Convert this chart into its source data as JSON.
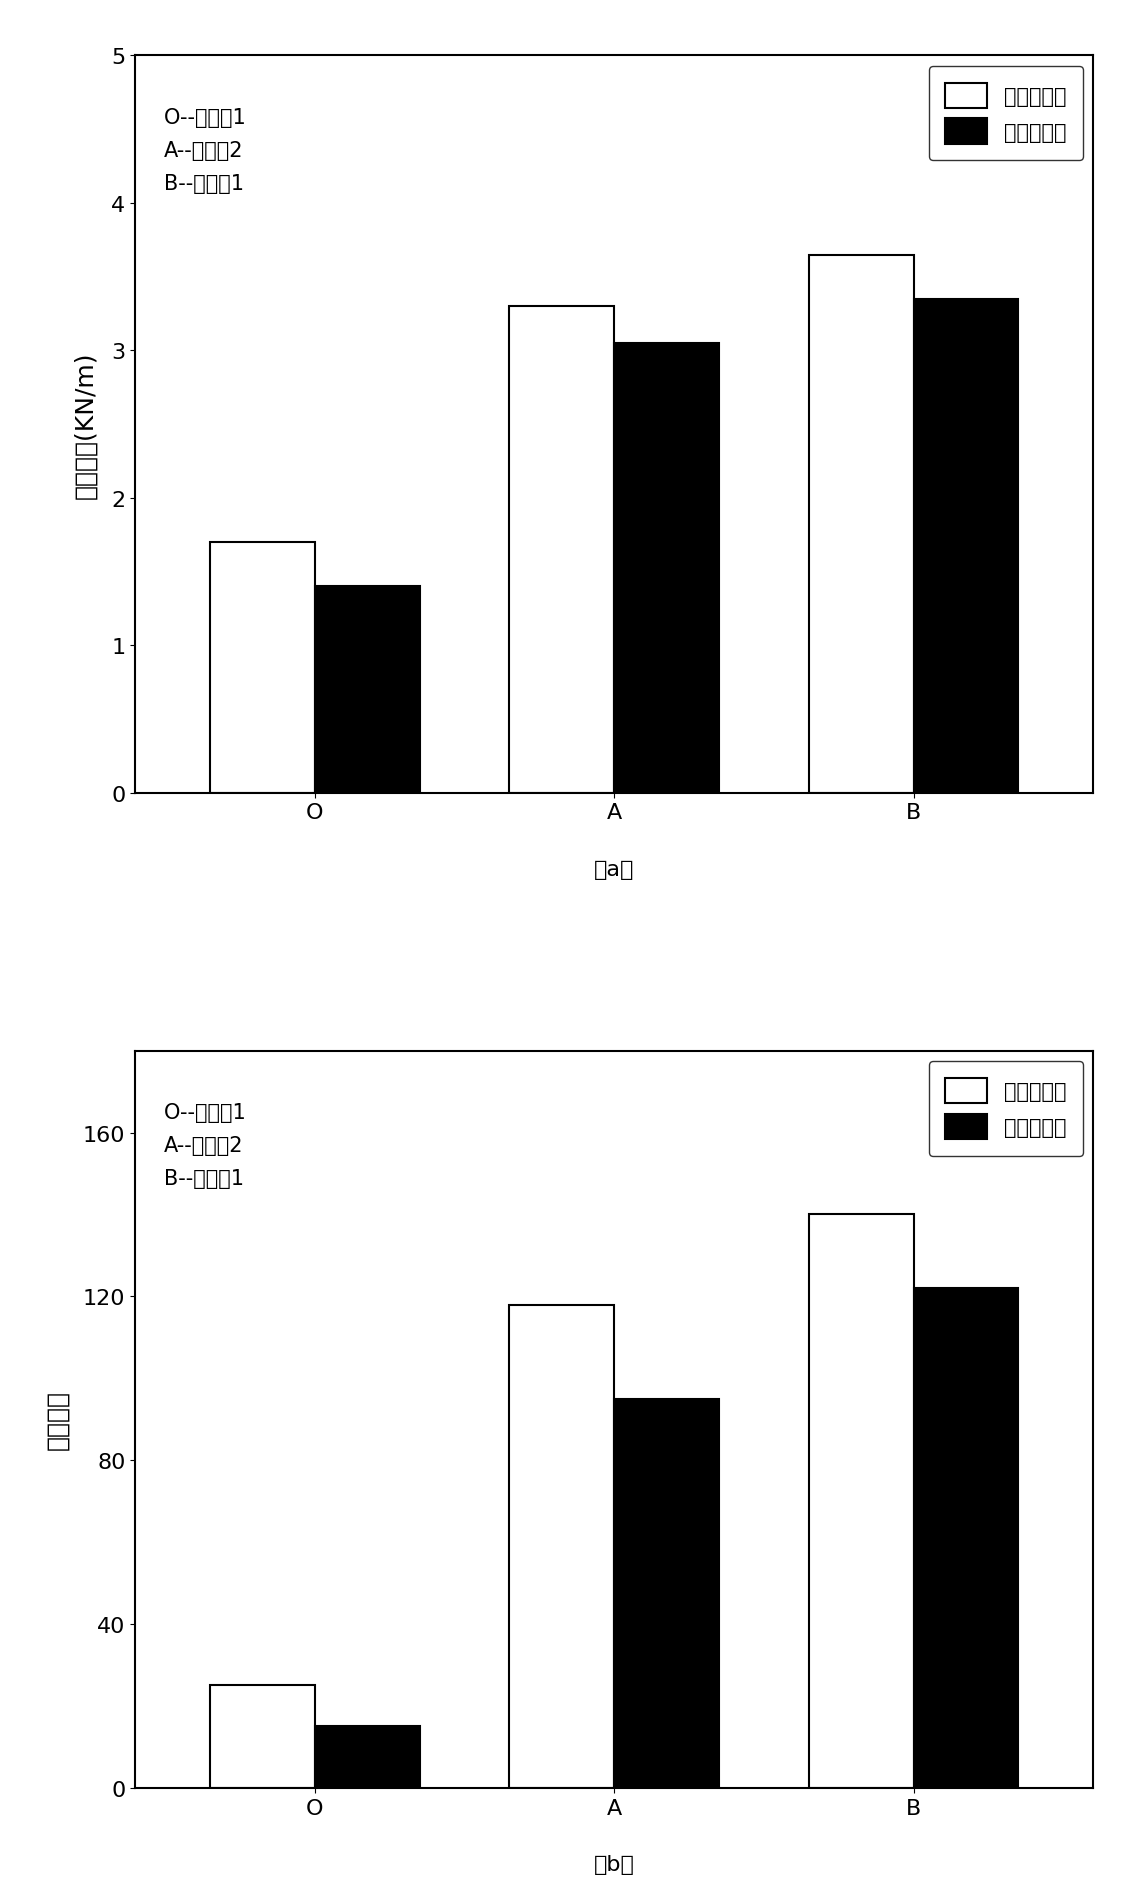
{
  "chart_a": {
    "categories": [
      "O",
      "A",
      "B"
    ],
    "before": [
      1.7,
      3.3,
      3.65
    ],
    "after": [
      1.4,
      3.05,
      3.35
    ],
    "ylabel": "抗张强度(KN/m)",
    "ylim": [
      0,
      5
    ],
    "yticks": [
      0,
      1,
      2,
      3,
      4,
      5
    ],
    "label_text": "O--空白样1\nA--空白样2\nB--实施例1",
    "subfig_label": "（a）"
  },
  "chart_b": {
    "categories": [
      "O",
      "A",
      "B"
    ],
    "before": [
      25,
      118,
      140
    ],
    "after": [
      15,
      95,
      122
    ],
    "ylabel": "耐折次数",
    "ylim": [
      0,
      180
    ],
    "yticks": [
      0,
      40,
      80,
      120,
      160
    ],
    "label_text": "O--空白样1\nA--空白样2\nB--实施例1",
    "subfig_label": "（b）"
  },
  "legend_before": "干热老化前",
  "legend_after": "干热老化后",
  "bar_width": 0.35,
  "color_before": "#ffffff",
  "color_after": "#000000",
  "edge_color": "#000000",
  "background_color": "#ffffff",
  "fontsize_tick": 16,
  "fontsize_ylabel": 18,
  "fontsize_legend": 15,
  "fontsize_annot": 15,
  "fontsize_subfig": 16
}
